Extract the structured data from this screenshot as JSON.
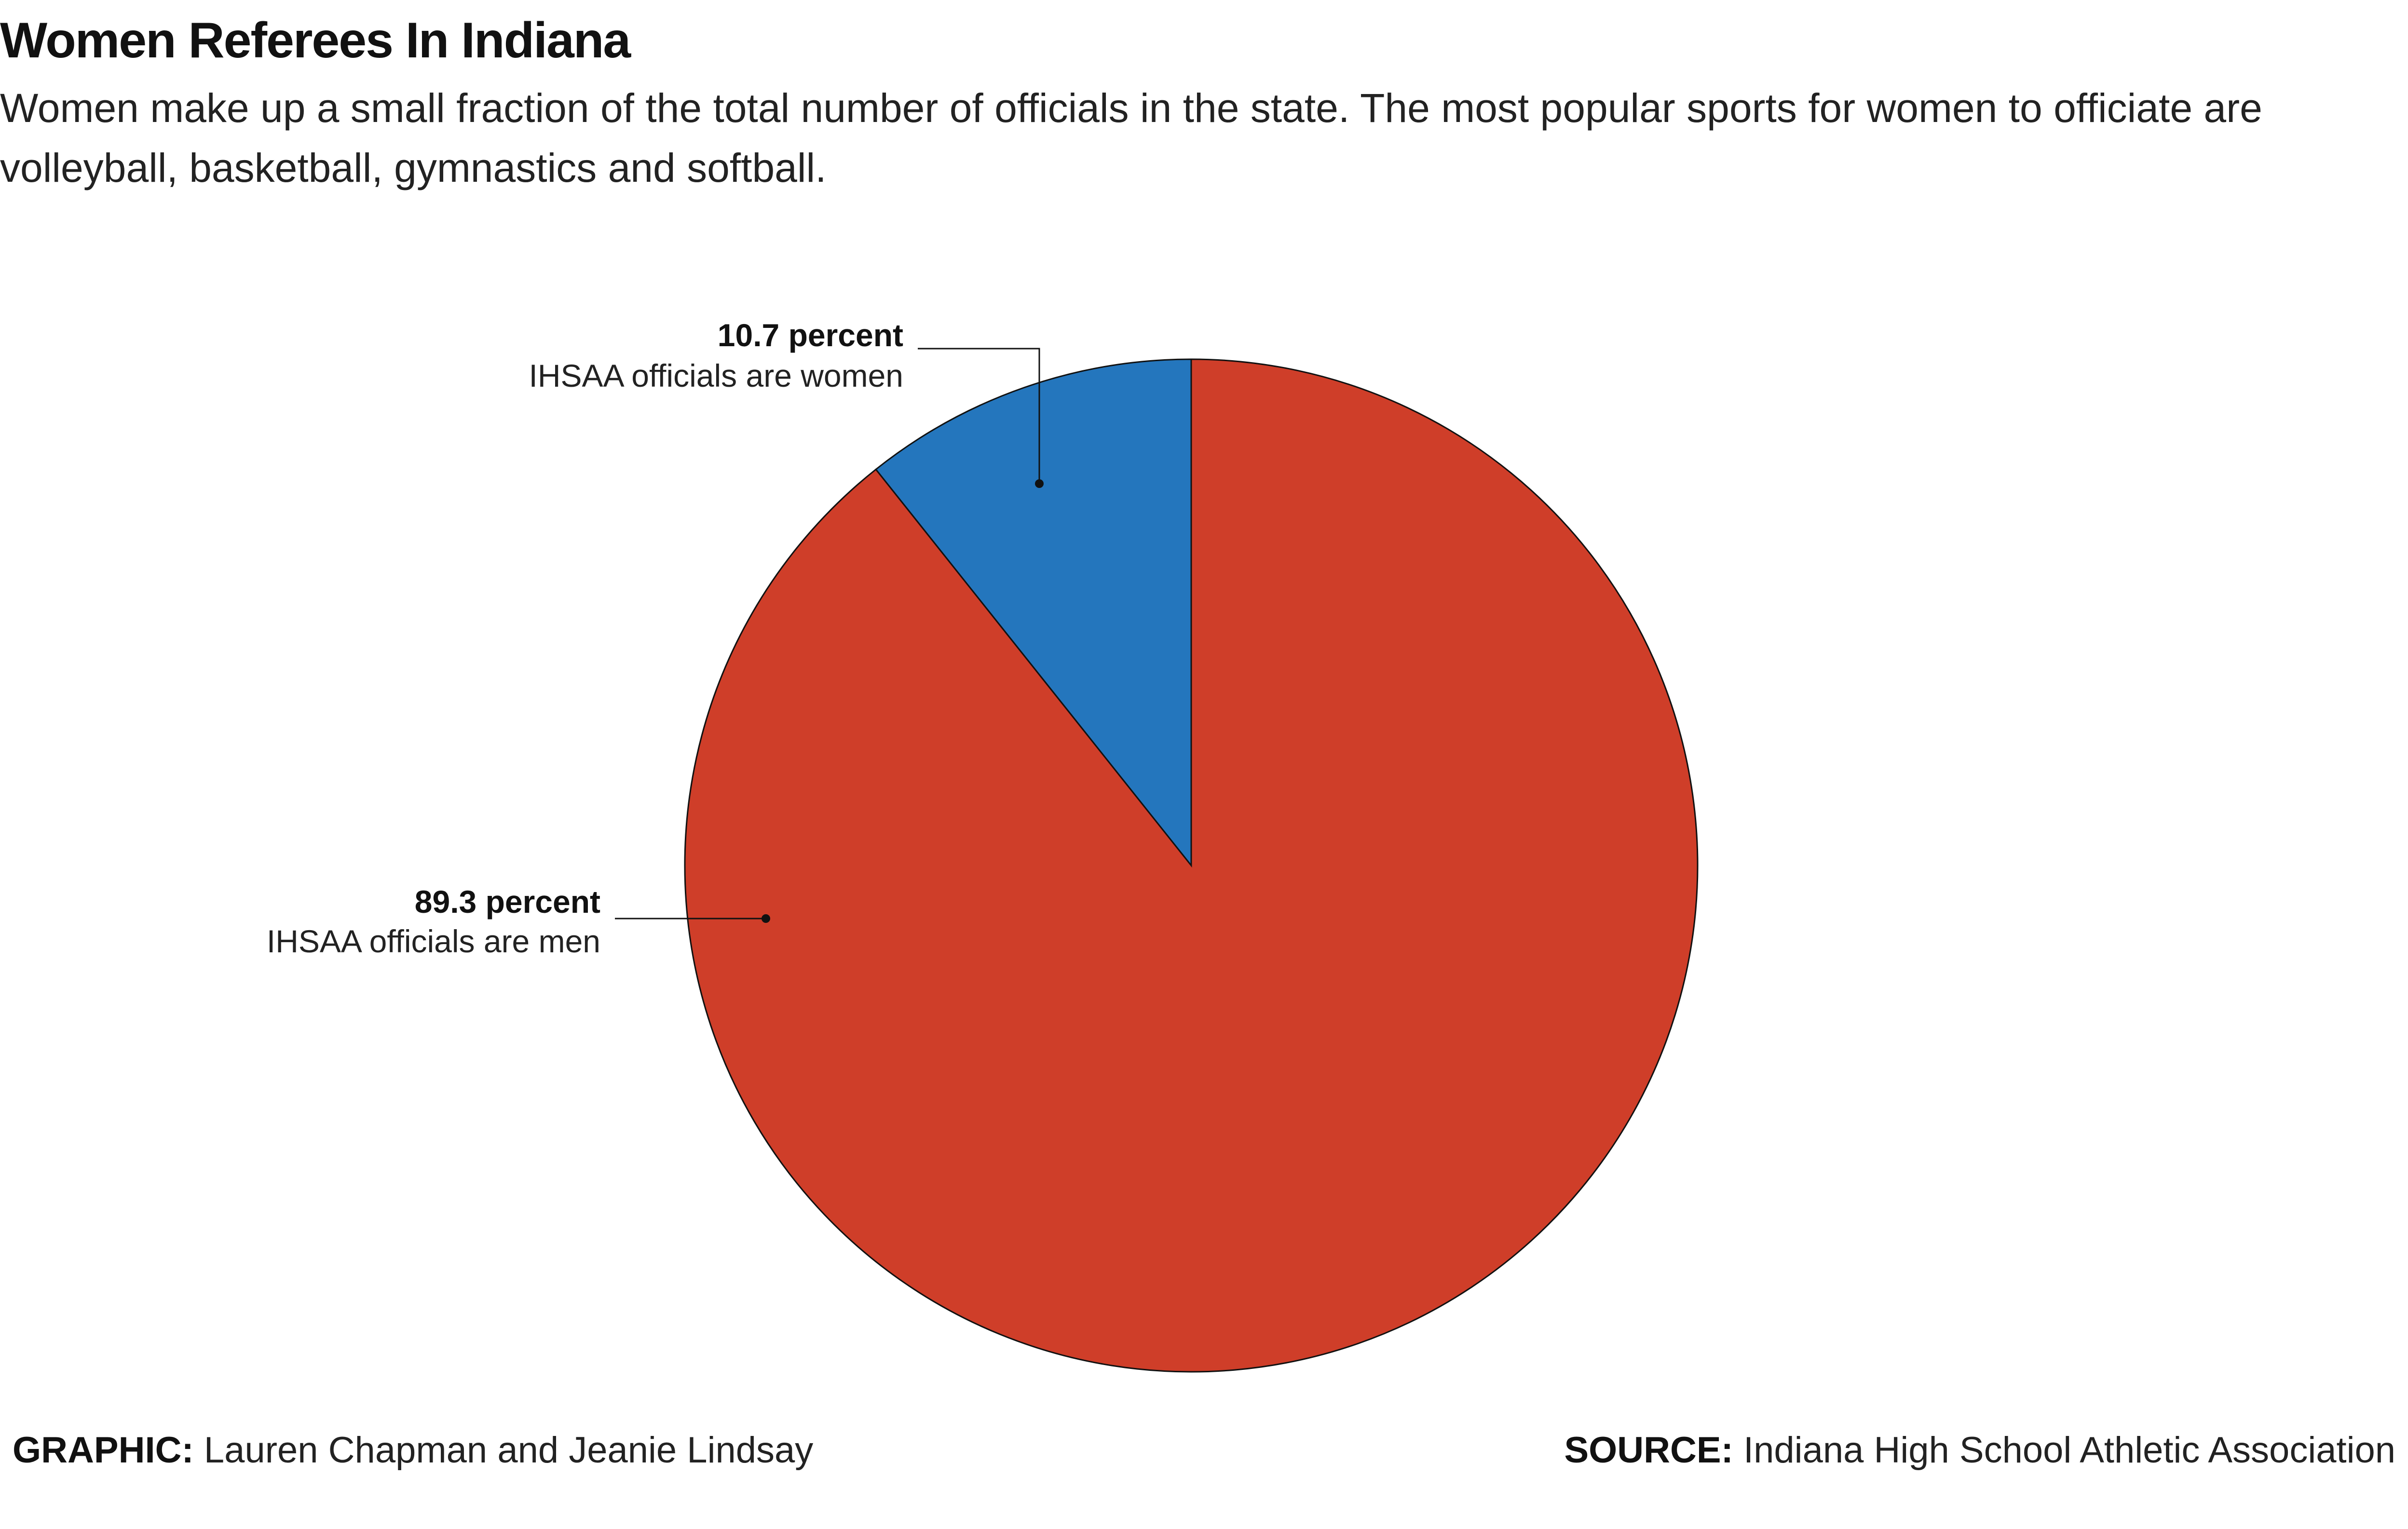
{
  "header": {
    "title": "Women Referees In Indiana",
    "subtitle": "Women make up a small fraction of the total number of officials in the state. The most popular sports for women to officiate are volleyball, basketball, gymnastics and softball."
  },
  "chart_data": {
    "type": "pie",
    "slices": [
      {
        "value": 10.7,
        "label_value": "10.7 percent",
        "label_text": "IHSAA officials are women",
        "color": "#2476bd"
      },
      {
        "value": 89.3,
        "label_value": "89.3 percent",
        "label_text": "IHSAA officials are men",
        "color": "#cf3e29"
      }
    ]
  },
  "footer": {
    "graphic_label": "GRAPHIC:",
    "graphic_value": "Lauren Chapman and Jeanie Lindsay",
    "source_label": "SOURCE:",
    "source_value": "Indiana High School Athletic Association"
  }
}
